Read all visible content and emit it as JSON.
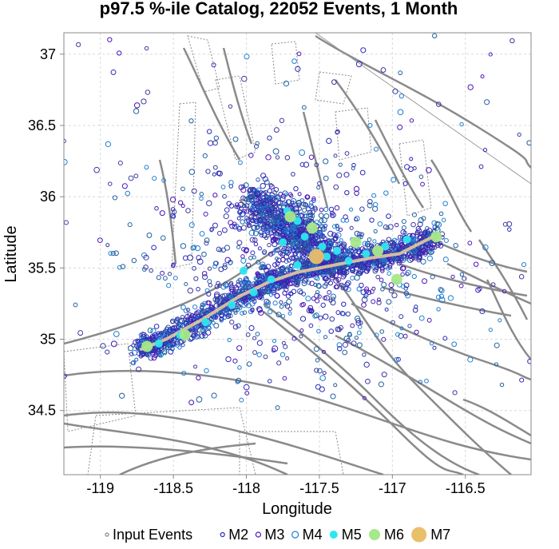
{
  "chart_data": {
    "type": "scatter",
    "title": "p97.5 %-ile Catalog, 22052 Events, 1 Month",
    "xlabel": "Longitude",
    "ylabel": "Latitude",
    "xlim": [
      -119.25,
      -116.05
    ],
    "ylim": [
      34.05,
      37.15
    ],
    "xticks": [
      -119,
      -118.5,
      -118,
      -117.5,
      -117,
      -116.5
    ],
    "yticks": [
      34.5,
      35,
      35.5,
      36,
      36.5,
      37
    ],
    "xtick_labels": [
      "-119",
      "-118.5",
      "-118",
      "-117.5",
      "-117",
      "-116.5"
    ],
    "ytick_labels": [
      "34.5",
      "35",
      "35.5",
      "36",
      "36.5",
      "37"
    ],
    "grid": true,
    "legend_position": "bottom",
    "legend": [
      {
        "label": "Input Events",
        "color": "#888888",
        "fill": false
      },
      {
        "label": "M2",
        "color": "#2a2ab8",
        "fill": false
      },
      {
        "label": "M3",
        "color": "#4b16b8",
        "fill": false
      },
      {
        "label": "M4",
        "color": "#1f7fd0",
        "fill": false
      },
      {
        "label": "M5",
        "color": "#2ee6f0",
        "fill": true
      },
      {
        "label": "M6",
        "color": "#a6e88a",
        "fill": true
      },
      {
        "label": "M7",
        "color": "#e8c06a",
        "fill": true
      }
    ],
    "rupture_trace": [
      [
        -118.72,
        34.93
      ],
      [
        -118.55,
        35.0
      ],
      [
        -118.3,
        35.14
      ],
      [
        -118.05,
        35.3
      ],
      [
        -117.85,
        35.4
      ],
      [
        -117.65,
        35.47
      ],
      [
        -117.4,
        35.52
      ],
      [
        -117.15,
        35.57
      ],
      [
        -116.95,
        35.6
      ],
      [
        -116.72,
        35.72
      ]
    ],
    "large_events": [
      {
        "lon": -117.52,
        "lat": 35.58,
        "mag": "M7"
      },
      {
        "lon": -118.68,
        "lat": 34.95,
        "mag": "M6"
      },
      {
        "lon": -118.42,
        "lat": 35.03,
        "mag": "M6"
      },
      {
        "lon": -117.7,
        "lat": 35.86,
        "mag": "M6"
      },
      {
        "lon": -117.55,
        "lat": 35.78,
        "mag": "M6"
      },
      {
        "lon": -117.25,
        "lat": 35.68,
        "mag": "M6"
      },
      {
        "lon": -116.7,
        "lat": 35.72,
        "mag": "M6"
      },
      {
        "lon": -116.97,
        "lat": 35.42,
        "mag": "M6"
      },
      {
        "lon": -117.1,
        "lat": 35.62,
        "mag": "M6"
      },
      {
        "lon": -118.6,
        "lat": 34.97,
        "mag": "M5"
      },
      {
        "lon": -118.45,
        "lat": 35.03,
        "mag": "M5"
      },
      {
        "lon": -118.28,
        "lat": 35.12,
        "mag": "M5"
      },
      {
        "lon": -118.1,
        "lat": 35.24,
        "mag": "M5"
      },
      {
        "lon": -117.95,
        "lat": 35.33,
        "mag": "M5"
      },
      {
        "lon": -117.83,
        "lat": 35.42,
        "mag": "M5"
      },
      {
        "lon": -118.02,
        "lat": 35.48,
        "mag": "M5"
      },
      {
        "lon": -117.75,
        "lat": 35.68,
        "mag": "M5"
      },
      {
        "lon": -117.72,
        "lat": 35.9,
        "mag": "M5"
      },
      {
        "lon": -117.65,
        "lat": 35.83,
        "mag": "M5"
      },
      {
        "lon": -117.6,
        "lat": 35.72,
        "mag": "M5"
      },
      {
        "lon": -117.48,
        "lat": 35.65,
        "mag": "M5"
      },
      {
        "lon": -117.38,
        "lat": 35.62,
        "mag": "M5"
      },
      {
        "lon": -117.3,
        "lat": 35.55,
        "mag": "M5"
      },
      {
        "lon": -117.18,
        "lat": 35.6,
        "mag": "M5"
      },
      {
        "lon": -117.05,
        "lat": 35.65,
        "mag": "M5"
      },
      {
        "lon": -116.9,
        "lat": 35.7,
        "mag": "M5"
      },
      {
        "lon": -117.65,
        "lat": 35.52,
        "mag": "M5"
      },
      {
        "lon": -117.45,
        "lat": 35.58,
        "mag": "M5"
      }
    ]
  }
}
